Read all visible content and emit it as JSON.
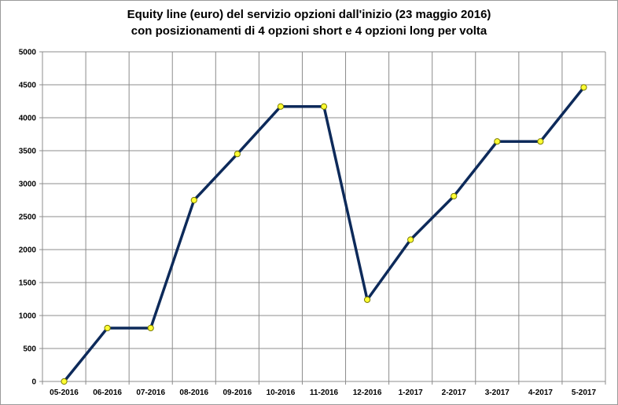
{
  "chart_data": {
    "type": "line",
    "title_line1": "Equity line (euro) del servizio opzioni dall'inizio (23 maggio 2016)",
    "title_line2": "con posizionamenti di 4 opzioni short e 4 opzioni long per volta",
    "categories": [
      "05-2016",
      "06-2016",
      "07-2016",
      "08-2016",
      "09-2016",
      "10-2016",
      "11-2016",
      "12-2016",
      "1-2017",
      "2-2017",
      "3-2017",
      "4-2017",
      "5-2017"
    ],
    "series": [
      {
        "values": [
          0,
          810,
          810,
          2750,
          3450,
          4170,
          4170,
          1240,
          2150,
          2810,
          3640,
          3640,
          4460
        ]
      }
    ],
    "ylim": [
      0,
      5000
    ],
    "yticks": [
      0,
      500,
      1000,
      1500,
      2000,
      2500,
      3000,
      3500,
      4000,
      4500,
      5000
    ],
    "grid": true,
    "legend": "none",
    "line_color": "#0d2a5a",
    "marker_color": "#ffff33",
    "marker_edge": "#7a7a00"
  }
}
